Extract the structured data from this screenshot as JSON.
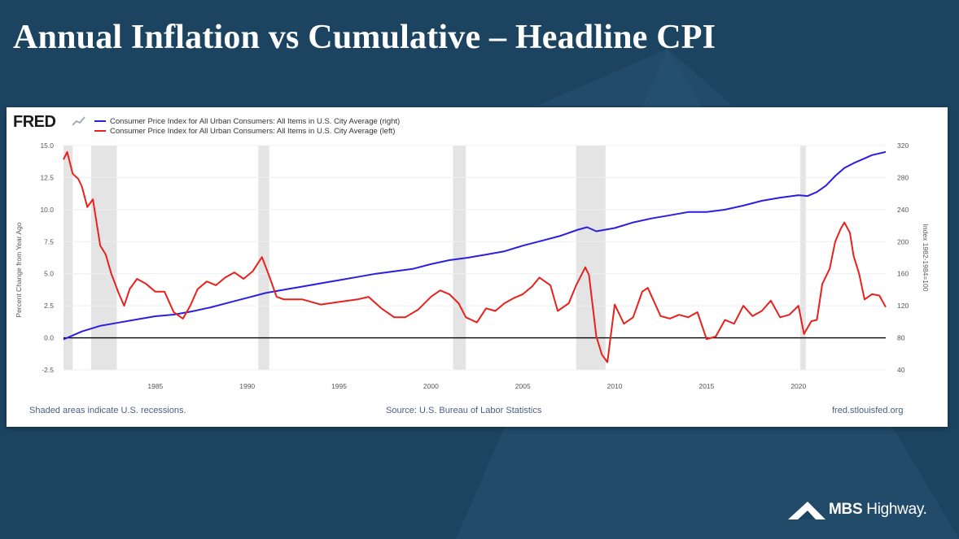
{
  "slide": {
    "title": "Annual Inflation vs Cumulative – Headline CPI",
    "brand_bold": "MBS",
    "brand_rest": " Highway",
    "brand_mark": "."
  },
  "fred": {
    "logo": "FRED",
    "note": "Shaded areas indicate U.S. recessions.",
    "source": "Source: U.S. Bureau of Labor Statistics",
    "url": "fred.stlouisfed.org"
  },
  "colors": {
    "background": "#1c4461",
    "cumulative_series": "#2c1ee0",
    "annual_series": "#e8211c",
    "recession": "#e4e4e4"
  },
  "chart_data": {
    "type": "line",
    "title": "",
    "x_ticks": [
      "1985",
      "1990",
      "1995",
      "2000",
      "2005",
      "2010",
      "2015",
      "2020"
    ],
    "xlim": [
      1980.0,
      2024.75
    ],
    "left_axis": {
      "label": "Percent Change from Year Ago",
      "ticks": [
        "15.0",
        "12.5",
        "10.0",
        "7.5",
        "5.0",
        "2.5",
        "0.0",
        "-2.5"
      ],
      "range": [
        -2.5,
        15.0
      ]
    },
    "right_axis": {
      "label": "Index 1982-1984=100",
      "ticks": [
        "320",
        "280",
        "240",
        "200",
        "160",
        "120",
        "80",
        "40"
      ],
      "range": [
        40,
        320
      ]
    },
    "recessions": [
      [
        1980.0,
        1980.5
      ],
      [
        1981.5,
        1982.9
      ],
      [
        1990.6,
        1991.2
      ],
      [
        2001.2,
        2001.9
      ],
      [
        2007.9,
        2009.5
      ],
      [
        2020.1,
        2020.4
      ]
    ],
    "series": [
      {
        "name": "Consumer Price Index for All Urban Consumers: All Items in U.S. City Average (right)",
        "axis": "right",
        "x": [
          1980,
          1981,
          1982,
          1983,
          1984,
          1985,
          1986,
          1987,
          1988,
          1989,
          1990,
          1991,
          1992,
          1993,
          1994,
          1995,
          1996,
          1997,
          1998,
          1999,
          2000,
          2001,
          2002,
          2003,
          2004,
          2005,
          2006,
          2007,
          2008,
          2008.5,
          2009,
          2010,
          2011,
          2012,
          2013,
          2014,
          2015,
          2016,
          2017,
          2018,
          2019,
          2020,
          2020.5,
          2021,
          2021.5,
          2022,
          2022.5,
          2023,
          2023.5,
          2024,
          2024.75
        ],
        "y": [
          78,
          88,
          95,
          99,
          103,
          107,
          109,
          113,
          118,
          124,
          130,
          136,
          140,
          144,
          148,
          152,
          156,
          160,
          163,
          166,
          172,
          177,
          180,
          184,
          188,
          195,
          201,
          207,
          215,
          218,
          213,
          217,
          224,
          229,
          233,
          237,
          237,
          240,
          245,
          251,
          255,
          258,
          257,
          262,
          270,
          282,
          292,
          298,
          303,
          308,
          312
        ]
      },
      {
        "name": "Consumer Price Index for All Urban Consumers: All Items in U.S. City Average (left)",
        "axis": "left",
        "x": [
          1980.0,
          1980.2,
          1980.5,
          1980.8,
          1981.0,
          1981.3,
          1981.6,
          1982.0,
          1982.3,
          1982.6,
          1983.0,
          1983.3,
          1983.6,
          1984.0,
          1984.5,
          1985.0,
          1985.5,
          1986.0,
          1986.5,
          1986.9,
          1987.3,
          1987.8,
          1988.3,
          1988.8,
          1989.3,
          1989.8,
          1990.3,
          1990.8,
          1991.2,
          1991.6,
          1992.0,
          1993.0,
          1994.0,
          1995.0,
          1996.0,
          1996.6,
          1997.3,
          1998.0,
          1998.6,
          1999.3,
          2000.0,
          2000.5,
          2001.0,
          2001.5,
          2001.9,
          2002.5,
          2003.0,
          2003.5,
          2004.0,
          2004.5,
          2005.0,
          2005.5,
          2005.9,
          2006.5,
          2006.9,
          2007.5,
          2007.9,
          2008.4,
          2008.6,
          2009.0,
          2009.3,
          2009.6,
          2010.0,
          2010.5,
          2011.0,
          2011.5,
          2011.8,
          2012.5,
          2013.0,
          2013.5,
          2014.0,
          2014.5,
          2015.0,
          2015.5,
          2016.0,
          2016.5,
          2017.0,
          2017.5,
          2018.0,
          2018.5,
          2019.0,
          2019.5,
          2020.0,
          2020.3,
          2020.7,
          2021.0,
          2021.3,
          2021.7,
          2022.0,
          2022.3,
          2022.5,
          2022.8,
          2023.0,
          2023.3,
          2023.6,
          2024.0,
          2024.4,
          2024.75
        ],
        "y": [
          13.9,
          14.5,
          12.8,
          12.4,
          11.8,
          10.2,
          10.8,
          7.2,
          6.5,
          5.0,
          3.5,
          2.5,
          3.8,
          4.6,
          4.2,
          3.6,
          3.6,
          2.0,
          1.5,
          2.5,
          3.8,
          4.4,
          4.1,
          4.7,
          5.1,
          4.6,
          5.2,
          6.3,
          4.8,
          3.2,
          3.0,
          3.0,
          2.6,
          2.8,
          3.0,
          3.2,
          2.3,
          1.6,
          1.6,
          2.2,
          3.2,
          3.7,
          3.4,
          2.7,
          1.6,
          1.2,
          2.3,
          2.1,
          2.7,
          3.1,
          3.4,
          4.0,
          4.7,
          4.1,
          2.1,
          2.7,
          4.1,
          5.5,
          4.9,
          0.1,
          -1.3,
          -1.9,
          2.6,
          1.1,
          1.6,
          3.6,
          3.9,
          1.7,
          1.5,
          1.8,
          1.6,
          2.0,
          -0.1,
          0.1,
          1.4,
          1.1,
          2.5,
          1.7,
          2.1,
          2.9,
          1.6,
          1.8,
          2.5,
          0.3,
          1.3,
          1.4,
          4.2,
          5.4,
          7.5,
          8.5,
          9.0,
          8.2,
          6.4,
          5.0,
          3.0,
          3.4,
          3.3,
          2.4
        ]
      }
    ]
  }
}
